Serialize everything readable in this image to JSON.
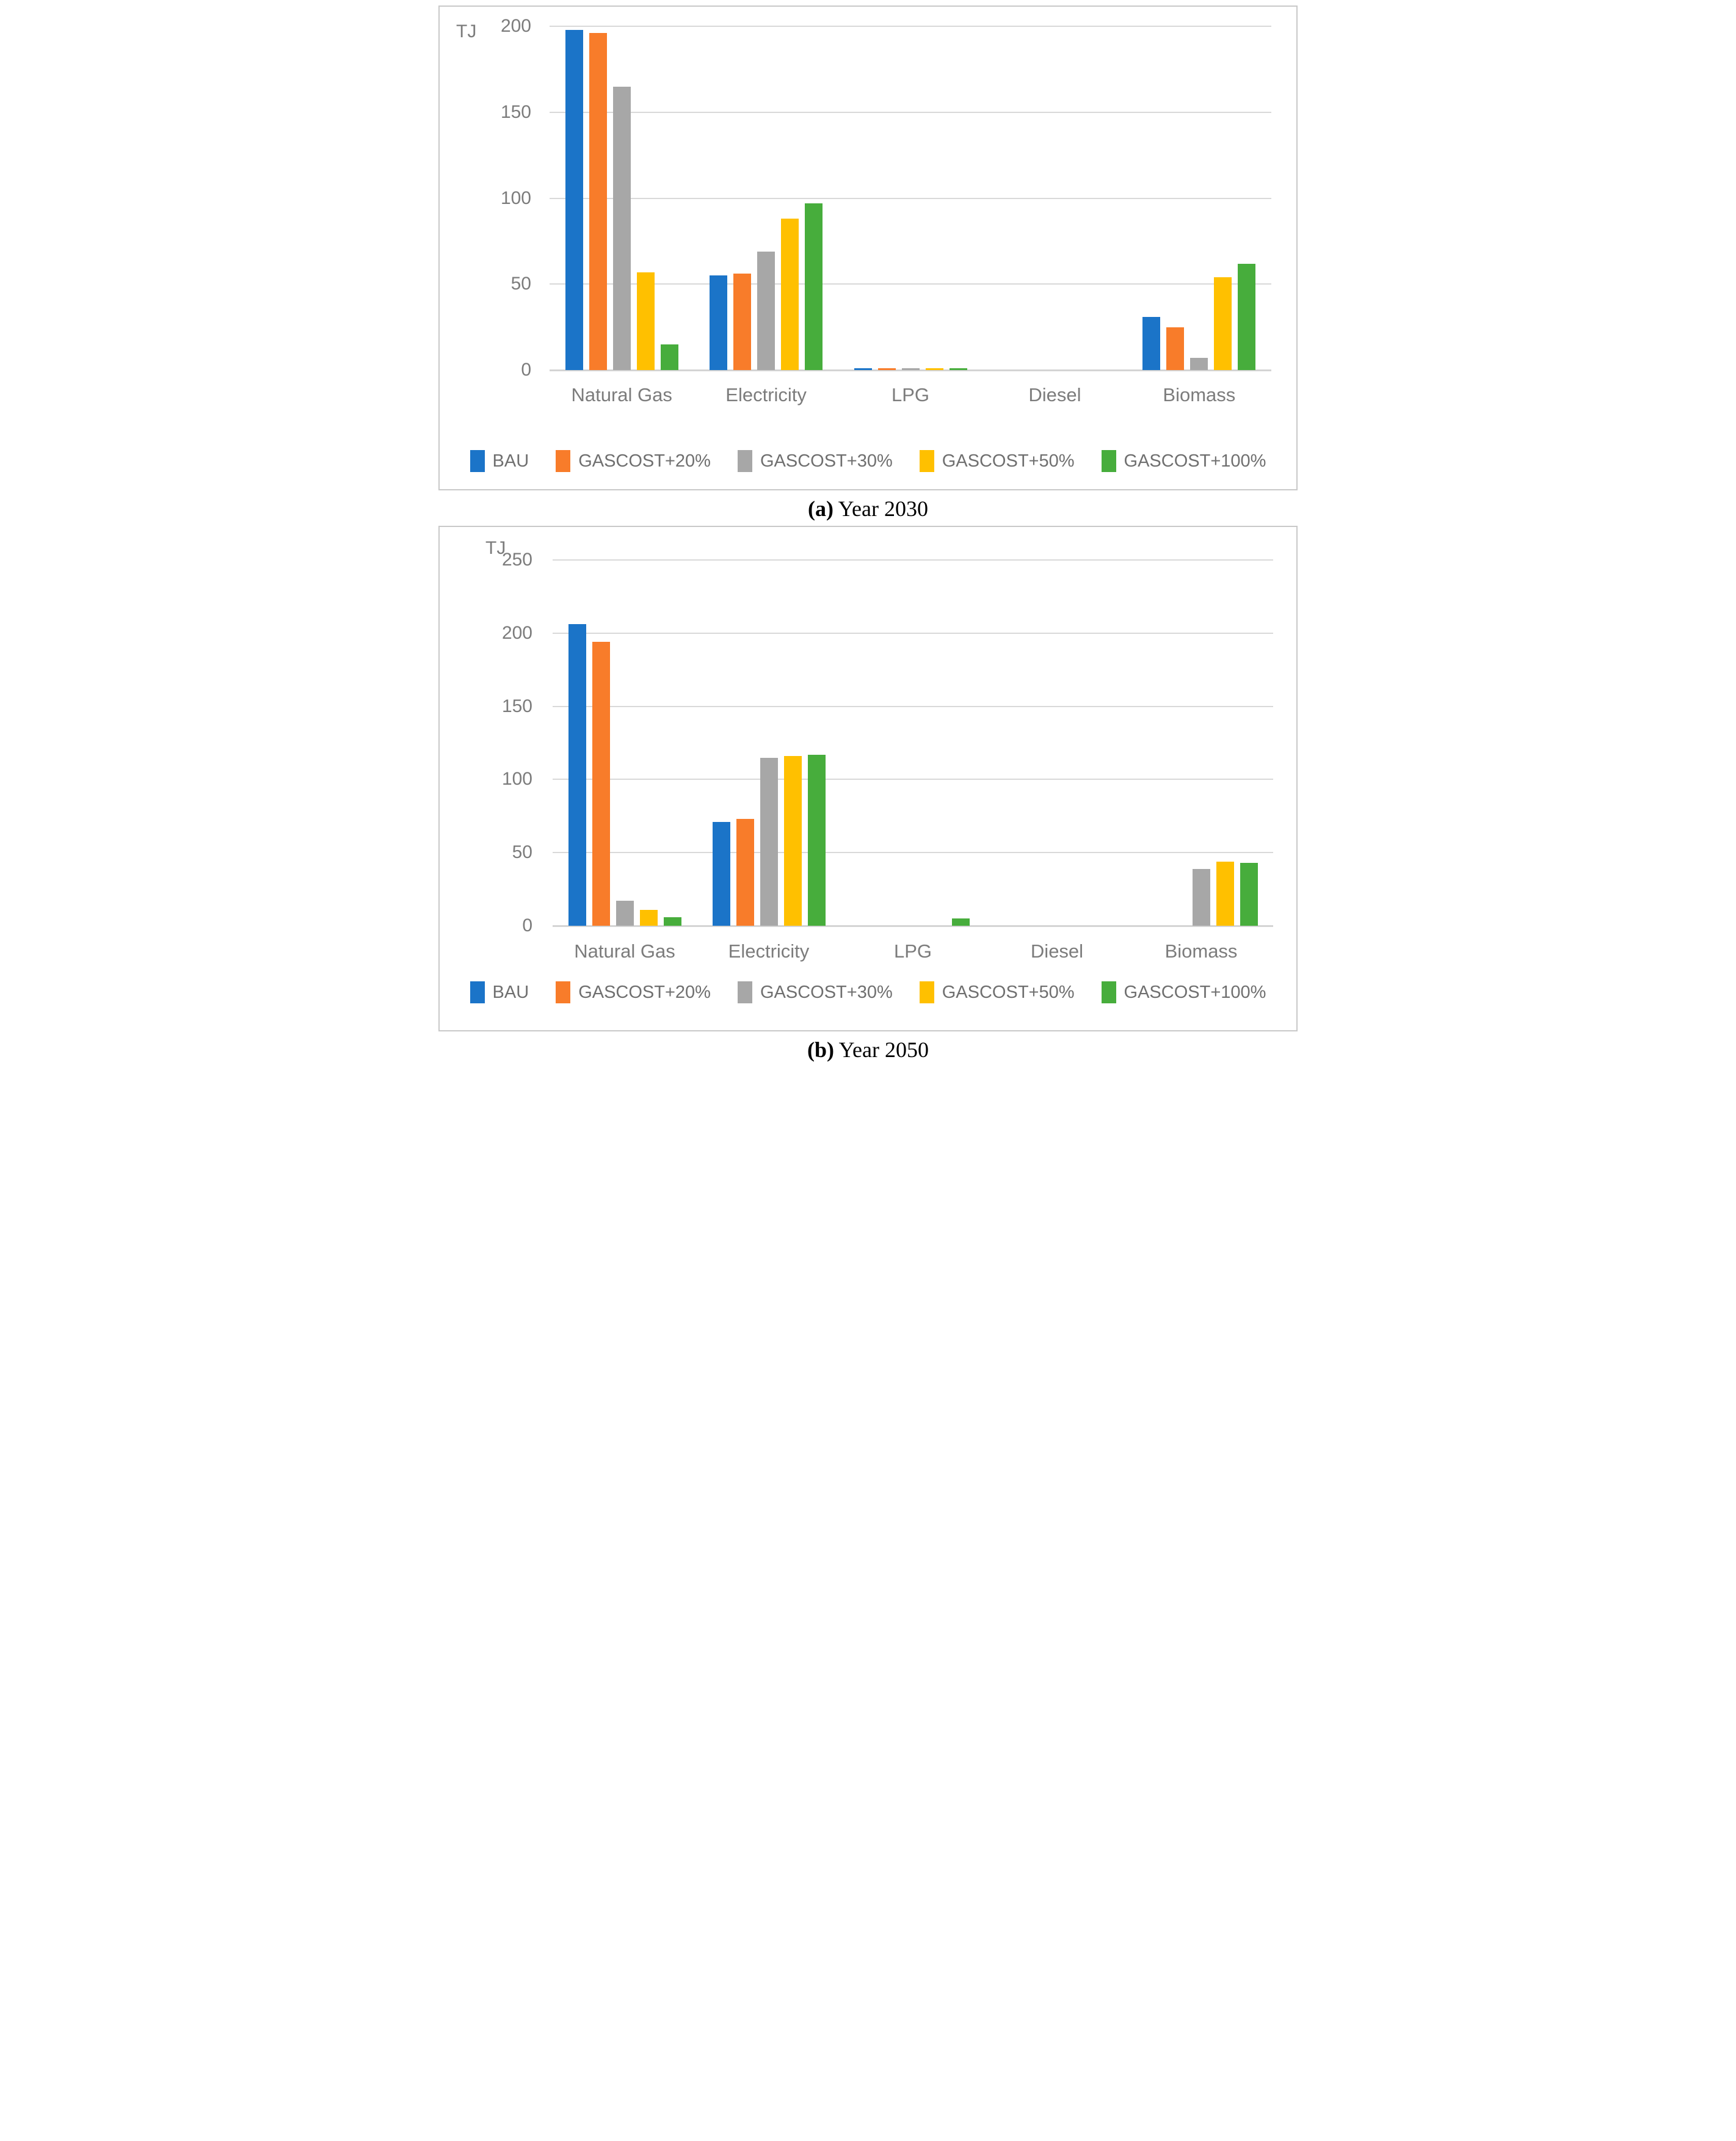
{
  "colors": {
    "gridline": "#D9D9D9",
    "zero_axis": "#D4D4D4",
    "panel_border": "#C9C9C9",
    "axis_text": "#7C7C7C",
    "legend_text": "#6F6F6F",
    "caption_text": "#000000"
  },
  "chart_data": [
    {
      "id": "a",
      "type": "bar",
      "caption_label": "(a)",
      "caption_text": "Year 2030",
      "unit": "TJ",
      "categories": [
        "Natural Gas",
        "Electricity",
        "LPG",
        "Diesel",
        "Biomass"
      ],
      "series": [
        {
          "name": "BAU",
          "color": "#1B74C8",
          "values": [
            198,
            55,
            1,
            0,
            31
          ]
        },
        {
          "name": "GASCOST+20%",
          "color": "#F87C2A",
          "values": [
            196,
            56,
            1,
            0,
            25
          ]
        },
        {
          "name": "GASCOST+30%",
          "color": "#A7A7A7",
          "values": [
            165,
            69,
            1,
            0,
            7
          ]
        },
        {
          "name": "GASCOST+50%",
          "color": "#FFC000",
          "values": [
            57,
            88,
            1,
            0,
            54
          ]
        },
        {
          "name": "GASCOST+100%",
          "color": "#47AD3C",
          "values": [
            15,
            97,
            1,
            0,
            62
          ]
        }
      ],
      "ylim": [
        0,
        200
      ],
      "yticks": [
        0,
        50,
        100,
        150,
        200
      ],
      "grid": true,
      "legend_position": "bottom"
    },
    {
      "id": "b",
      "type": "bar",
      "caption_label": "(b)",
      "caption_text": "Year 2050",
      "unit": "TJ",
      "categories": [
        "Natural Gas",
        "Electricity",
        "LPG",
        "Diesel",
        "Biomass"
      ],
      "series": [
        {
          "name": "BAU",
          "color": "#1B74C8",
          "values": [
            206,
            71,
            0,
            0,
            0
          ]
        },
        {
          "name": "GASCOST+20%",
          "color": "#F87C2A",
          "values": [
            194,
            73,
            0,
            0,
            0
          ]
        },
        {
          "name": "GASCOST+30%",
          "color": "#A7A7A7",
          "values": [
            17,
            115,
            0,
            0,
            39
          ]
        },
        {
          "name": "GASCOST+50%",
          "color": "#FFC000",
          "values": [
            11,
            116,
            0,
            0,
            44
          ]
        },
        {
          "name": "GASCOST+100%",
          "color": "#47AD3C",
          "values": [
            6,
            117,
            5,
            0,
            43
          ]
        }
      ],
      "ylim": [
        0,
        250
      ],
      "yticks": [
        0,
        50,
        100,
        150,
        200,
        250
      ],
      "grid": true,
      "legend_position": "bottom"
    }
  ]
}
